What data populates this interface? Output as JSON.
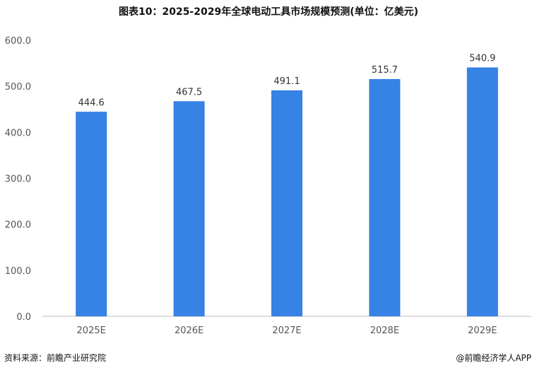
{
  "title": "图表10：2025-2029年全球电动工具市场规模预测(单位：亿美元)",
  "source": "资料来源：前瞻产业研究院",
  "credit": "@前瞻经济学人APP",
  "colors": {
    "bar": "#3682e5",
    "axis": "#bfbfbf"
  },
  "chart_data": {
    "type": "bar",
    "categories": [
      "2025E",
      "2026E",
      "2027E",
      "2028E",
      "2029E"
    ],
    "values": [
      444.6,
      467.5,
      491.1,
      515.7,
      540.9
    ],
    "value_labels": [
      "444.6",
      "467.5",
      "491.1",
      "515.7",
      "540.9"
    ],
    "title": "图表10：2025-2029年全球电动工具市场规模预测(单位：亿美元)",
    "xlabel": "",
    "ylabel": "",
    "ylim": [
      0,
      600
    ],
    "yticks": [
      "0.0",
      "100.0",
      "200.0",
      "300.0",
      "400.0",
      "500.0",
      "600.0"
    ],
    "grid": false,
    "legend": "none"
  }
}
